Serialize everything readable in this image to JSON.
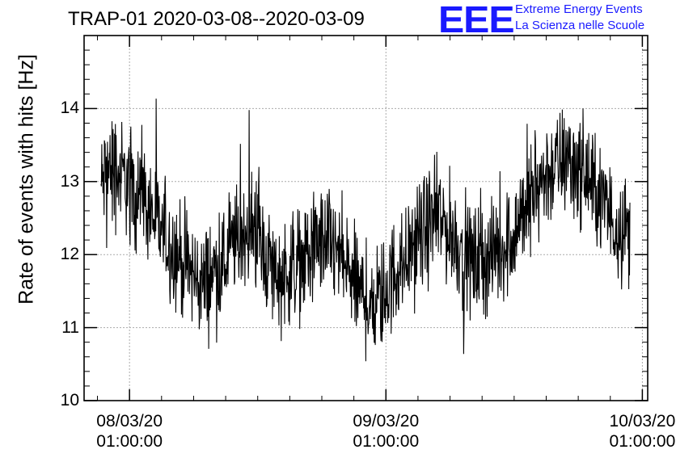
{
  "chart_data": {
    "type": "line",
    "title": "TRAP-01 2020-03-08--2020-03-09",
    "ylabel": "Rate of events with hits [Hz]",
    "xlabel": "",
    "ylim": [
      10,
      15
    ],
    "yticks": [
      "10",
      "11",
      "12",
      "13",
      "14"
    ],
    "xticks": [
      {
        "date": "08/03/20",
        "time": "01:00:00"
      },
      {
        "date": "09/03/20",
        "time": "01:00:00"
      },
      {
        "date": "10/03/20",
        "time": "01:00:00"
      }
    ],
    "xlim": [
      "2020-03-07T20:45:00",
      "2020-03-10T01:30:00"
    ],
    "grid": true,
    "series": [
      {
        "x": [
          "2020-03-07T22:20",
          "2020-03-07T23:00",
          "2020-03-08T00:00",
          "2020-03-08T01:00",
          "2020-03-08T02:00",
          "2020-03-08T03:00",
          "2020-03-08T04:00",
          "2020-03-08T05:00",
          "2020-03-08T06:00",
          "2020-03-08T07:00",
          "2020-03-08T08:00",
          "2020-03-08T09:00",
          "2020-03-08T10:00",
          "2020-03-08T11:00",
          "2020-03-08T12:00",
          "2020-03-08T13:00",
          "2020-03-08T14:00",
          "2020-03-08T15:00",
          "2020-03-08T16:00",
          "2020-03-08T17:00",
          "2020-03-08T18:00",
          "2020-03-08T19:00",
          "2020-03-08T20:00",
          "2020-03-08T21:00",
          "2020-03-08T22:00",
          "2020-03-08T23:00",
          "2020-03-09T00:00",
          "2020-03-09T01:00",
          "2020-03-09T02:00",
          "2020-03-09T03:00",
          "2020-03-09T04:00",
          "2020-03-09T05:00",
          "2020-03-09T06:00",
          "2020-03-09T07:00",
          "2020-03-09T08:00",
          "2020-03-09T09:00",
          "2020-03-09T10:00",
          "2020-03-09T11:00",
          "2020-03-09T12:00",
          "2020-03-09T13:00",
          "2020-03-09T14:00",
          "2020-03-09T15:00",
          "2020-03-09T16:00",
          "2020-03-09T17:00",
          "2020-03-09T18:00",
          "2020-03-09T19:00",
          "2020-03-09T20:00",
          "2020-03-09T21:00",
          "2020-03-09T22:00",
          "2020-03-09T23:00",
          "2020-03-09T23:50"
        ],
        "y": [
          12.9,
          13.2,
          13.1,
          13.0,
          12.8,
          12.6,
          12.3,
          12.1,
          11.9,
          11.7,
          11.6,
          11.8,
          11.9,
          12.2,
          12.4,
          12.3,
          11.9,
          11.7,
          11.8,
          11.9,
          12.0,
          12.2,
          12.1,
          11.9,
          11.6,
          11.4,
          11.3,
          11.5,
          11.8,
          12.0,
          12.2,
          12.4,
          12.5,
          12.3,
          12.1,
          11.9,
          11.9,
          12.0,
          12.1,
          12.3,
          12.6,
          12.9,
          13.1,
          13.2,
          13.3,
          13.2,
          13.0,
          12.8,
          12.5,
          12.4,
          12.3
        ]
      }
    ]
  },
  "logo": {
    "text": "EEE",
    "line1": "Extreme Energy Events",
    "line2": "La Scienza nelle Scuole",
    "color": "#1a1aff"
  }
}
